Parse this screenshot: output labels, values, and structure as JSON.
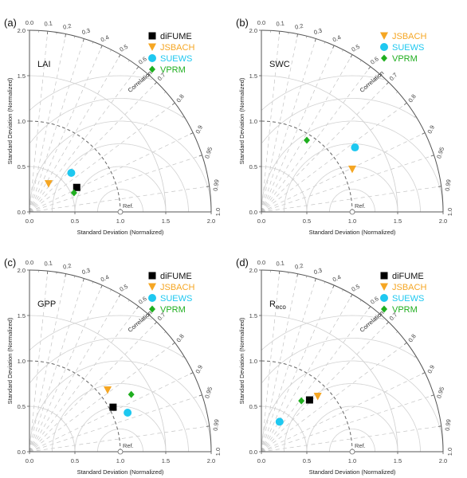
{
  "chart_data": [
    {
      "type": "scatter",
      "panel_label": "(a)",
      "variable_label": "LAI",
      "variable_sub": "",
      "xlabel": "Standard Deviation (Normalized)",
      "ylabel": "Standard Deviation (Normalized)",
      "corr_label": "Correlation",
      "ref_label": "Ref.",
      "x_ticks": [
        "0.0",
        "0.5",
        "1.0",
        "1.5",
        "2.0"
      ],
      "y_ticks": [
        "0.0",
        "0.5",
        "1.0",
        "1.5",
        "2.0"
      ],
      "corr_ticks": [
        "0.0",
        "0.1",
        "0.2",
        "0.3",
        "0.4",
        "0.5",
        "0.6",
        "0.7",
        "0.8",
        "0.9",
        "0.95",
        "0.99",
        "1.0"
      ],
      "series": [
        {
          "name": "diFUME",
          "marker": "square",
          "color": "#000000",
          "x": 0.52,
          "y": 0.27
        },
        {
          "name": "JSBACH",
          "marker": "triangle-down",
          "color": "#f5a623",
          "x": 0.21,
          "y": 0.31
        },
        {
          "name": "SUEWS",
          "marker": "circle",
          "color": "#1ec8f0",
          "x": 0.46,
          "y": 0.43
        },
        {
          "name": "VPRM",
          "marker": "diamond",
          "color": "#1fae1f",
          "x": 0.49,
          "y": 0.21
        }
      ]
    },
    {
      "type": "scatter",
      "panel_label": "(b)",
      "variable_label": "SWC",
      "variable_sub": "",
      "xlabel": "Standard Deviation (Normalized)",
      "ylabel": "Standard Deviation (Normalized)",
      "corr_label": "Correlation",
      "ref_label": "Ref.",
      "x_ticks": [
        "0.0",
        "0.5",
        "1.0",
        "1.5",
        "2.0"
      ],
      "y_ticks": [
        "0.0",
        "0.5",
        "1.0",
        "1.5",
        "2.0"
      ],
      "corr_ticks": [
        "0.0",
        "0.1",
        "0.2",
        "0.3",
        "0.4",
        "0.5",
        "0.6",
        "0.7",
        "0.8",
        "0.9",
        "0.95",
        "0.99",
        "1.0"
      ],
      "series": [
        {
          "name": "JSBACH",
          "marker": "triangle-down",
          "color": "#f5a623",
          "x": 1.0,
          "y": 0.47
        },
        {
          "name": "SUEWS",
          "marker": "circle",
          "color": "#1ec8f0",
          "x": 1.03,
          "y": 0.71
        },
        {
          "name": "VPRM",
          "marker": "diamond",
          "color": "#1fae1f",
          "x": 0.5,
          "y": 0.79
        }
      ]
    },
    {
      "type": "scatter",
      "panel_label": "(c)",
      "variable_label": "GPP",
      "variable_sub": "",
      "xlabel": "Standard Deviation (Normalized)",
      "ylabel": "Standard Deviation (Normalized)",
      "corr_label": "Correlation",
      "ref_label": "Ref.",
      "x_ticks": [
        "0.0",
        "0.5",
        "1.0",
        "1.5",
        "2.0"
      ],
      "y_ticks": [
        "0.0",
        "0.5",
        "1.0",
        "1.5",
        "2.0"
      ],
      "corr_ticks": [
        "0.0",
        "0.1",
        "0.2",
        "0.3",
        "0.4",
        "0.5",
        "0.6",
        "0.7",
        "0.8",
        "0.9",
        "0.95",
        "0.99",
        "1.0"
      ],
      "series": [
        {
          "name": "diFUME",
          "marker": "square",
          "color": "#000000",
          "x": 0.92,
          "y": 0.49
        },
        {
          "name": "JSBACH",
          "marker": "triangle-down",
          "color": "#f5a623",
          "x": 0.86,
          "y": 0.68
        },
        {
          "name": "SUEWS",
          "marker": "circle",
          "color": "#1ec8f0",
          "x": 1.08,
          "y": 0.43
        },
        {
          "name": "VPRM",
          "marker": "diamond",
          "color": "#1fae1f",
          "x": 1.12,
          "y": 0.63
        }
      ]
    },
    {
      "type": "scatter",
      "panel_label": "(d)",
      "variable_label": "R",
      "variable_sub": "eco",
      "xlabel": "Standard Deviation (Normalized)",
      "ylabel": "Standard Deviation (Normalized)",
      "corr_label": "Correlation",
      "ref_label": "Ref.",
      "x_ticks": [
        "0.0",
        "0.5",
        "1.0",
        "1.5",
        "2.0"
      ],
      "y_ticks": [
        "0.0",
        "0.5",
        "1.0",
        "1.5",
        "2.0"
      ],
      "corr_ticks": [
        "0.0",
        "0.1",
        "0.2",
        "0.3",
        "0.4",
        "0.5",
        "0.6",
        "0.7",
        "0.8",
        "0.9",
        "0.95",
        "0.99",
        "1.0"
      ],
      "series": [
        {
          "name": "diFUME",
          "marker": "square",
          "color": "#000000",
          "x": 0.53,
          "y": 0.57
        },
        {
          "name": "JSBACH",
          "marker": "triangle-down",
          "color": "#f5a623",
          "x": 0.62,
          "y": 0.61
        },
        {
          "name": "SUEWS",
          "marker": "circle",
          "color": "#1ec8f0",
          "x": 0.2,
          "y": 0.33
        },
        {
          "name": "VPRM",
          "marker": "diamond",
          "color": "#1fae1f",
          "x": 0.44,
          "y": 0.56
        }
      ]
    }
  ]
}
